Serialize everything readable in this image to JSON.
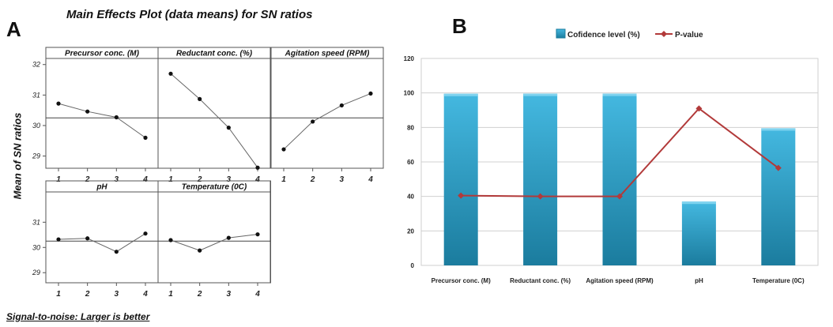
{
  "panel_a": {
    "letter": "A",
    "title": "Main Effects Plot (data means) for SN ratios",
    "y_axis_label": "Mean of SN ratios",
    "footnote": "Signal-to-noise: Larger is better"
  },
  "panel_b": {
    "letter": "B"
  },
  "chart_data": [
    {
      "type": "line",
      "title": "Main Effects Plot (data means) for SN ratios",
      "ylabel": "Mean of SN ratios",
      "ylim": [
        28.6,
        32.2
      ],
      "yticks": [
        29,
        30,
        31,
        32
      ],
      "yticks_row2": [
        29,
        30,
        31
      ],
      "reference_line": 30.25,
      "x": [
        1,
        2,
        3,
        4
      ],
      "series": [
        {
          "name": "Precursor conc. (M)",
          "values": [
            30.72,
            30.46,
            30.27,
            29.6
          ]
        },
        {
          "name": "Reductant conc. (%)",
          "values": [
            31.7,
            30.87,
            29.93,
            28.62
          ]
        },
        {
          "name": "Agitation speed (RPM)",
          "values": [
            29.22,
            30.13,
            30.66,
            31.05
          ]
        },
        {
          "name": "pH",
          "values": [
            30.32,
            30.36,
            29.83,
            30.55
          ]
        },
        {
          "name": "Temperature (0C)",
          "values": [
            30.29,
            29.88,
            30.38,
            30.52
          ]
        }
      ],
      "footnote": "Signal-to-noise: Larger is better"
    },
    {
      "type": "bar",
      "categories": [
        "Precursor conc. (M)",
        "Reductant conc. (%)",
        "Agitation speed (RPM)",
        "pH",
        "Temperature (0C)"
      ],
      "ylim": [
        0,
        120
      ],
      "yticks": [
        0,
        20,
        40,
        60,
        80,
        100,
        120
      ],
      "grid": true,
      "legend_position": "top",
      "series": [
        {
          "name": "Cofidence level (%)",
          "kind": "bar",
          "color": "#2a9fce",
          "values": [
            99.5,
            99.6,
            99.6,
            37,
            79.5
          ]
        },
        {
          "name": "P-value",
          "kind": "line",
          "color": "#b23a3a",
          "values": [
            40.5,
            40,
            40,
            91,
            56.5
          ]
        }
      ]
    }
  ]
}
